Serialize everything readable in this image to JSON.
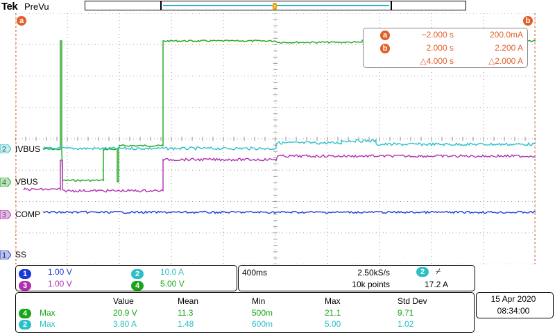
{
  "header": {
    "brand": "Tek",
    "mode": "PreVu"
  },
  "cursor_badges": {
    "a": "a",
    "b": "b"
  },
  "cursors": {
    "rows": [
      {
        "badge": "a",
        "time": "−2.000 s",
        "value": "200.0mA"
      },
      {
        "badge": "b",
        "time": "2.000 s",
        "value": "2.200 A"
      },
      {
        "badge": "",
        "time": "△4.000 s",
        "value": "△2.000 A"
      }
    ]
  },
  "channels": [
    {
      "num": "2",
      "name": "IVBUS",
      "color": "#2bc0c8"
    },
    {
      "num": "4",
      "name": "VBUS",
      "color": "#1aa51a"
    },
    {
      "num": "3",
      "name": "COMP",
      "color": "#b030b0"
    },
    {
      "num": "1",
      "name": "SS",
      "color": "#1a3ad8"
    }
  ],
  "scales": {
    "ch1": {
      "num": "1",
      "value": "1.00 V",
      "color": "#1a3ad8"
    },
    "ch2": {
      "num": "2",
      "value": "10.0 A",
      "color": "#2bc0c8"
    },
    "ch3": {
      "num": "3",
      "value": "1.00 V",
      "color": "#b030b0"
    },
    "ch4": {
      "num": "4",
      "value": "5.00 V",
      "color": "#1aa51a"
    }
  },
  "timebase": {
    "horizontal": "400ms",
    "sample_rate": "2.50kS/s",
    "record_length": "10k points",
    "trigger_channel": "2",
    "trigger_slope": "⌿",
    "trigger_level": "17.2 A"
  },
  "measurements": {
    "headers": [
      "Value",
      "Mean",
      "Min",
      "Max",
      "Std Dev"
    ],
    "rows": [
      {
        "channel": "4",
        "type": "Max",
        "color": "#1aa51a",
        "values": [
          "20.9 V",
          "11.3",
          "500m",
          "21.1",
          "9.71"
        ]
      },
      {
        "channel": "2",
        "type": "Max",
        "color": "#2bc0c8",
        "values": [
          "3.80 A",
          "1.48",
          "600m",
          "5.00",
          "1.02"
        ]
      }
    ]
  },
  "datetime": {
    "date": "15 Apr  2020",
    "time": "08:34:00"
  },
  "colors": {
    "cursor": "#e0602c",
    "grid": "#9a9a9a"
  }
}
